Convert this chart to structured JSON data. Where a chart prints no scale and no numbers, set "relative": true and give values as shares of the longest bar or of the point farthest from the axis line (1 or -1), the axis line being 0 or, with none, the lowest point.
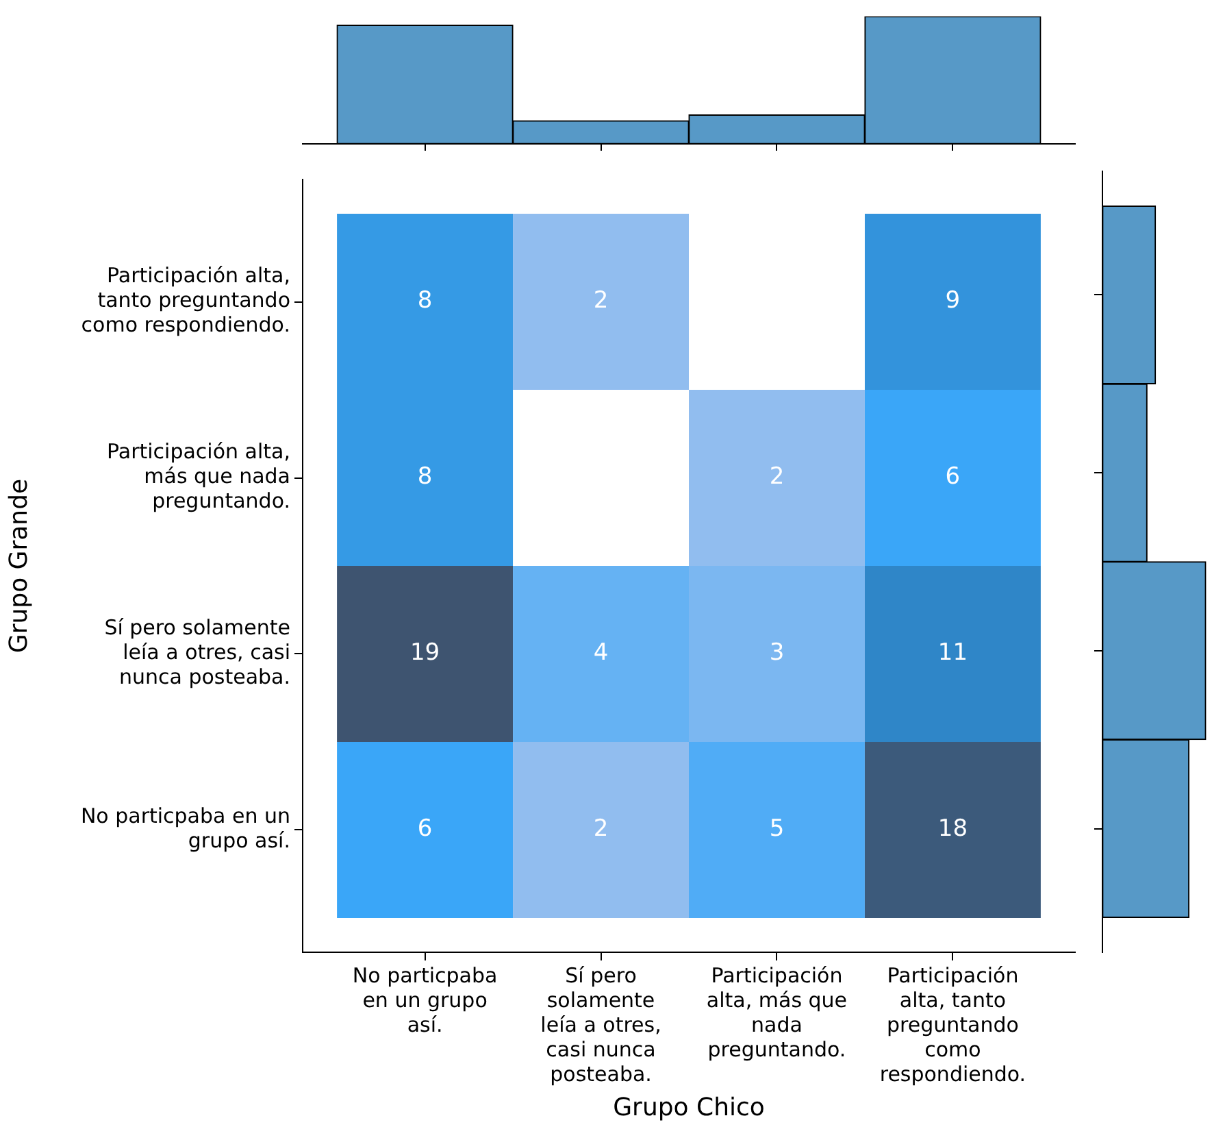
{
  "chart_data": [
    {
      "type": "heatmap",
      "xlabel": "Grupo Chico",
      "ylabel": "Grupo Grande",
      "categories": [
        "No particpaba en un grupo así.",
        "Sí pero solamente leía a otres, casi nunca posteaba.",
        "Participación alta, más que nada preguntando.",
        "Participación alta, tanto preguntando como respondiendo."
      ],
      "y_categories": [
        "Participación alta, tanto preguntando como respondiendo.",
        "Participación alta, más que nada preguntando.",
        "Sí pero solamente leía a otres, casi nunca posteaba.",
        "No particpaba en un grupo así."
      ],
      "cells": [
        [
          8,
          2,
          null,
          9
        ],
        [
          8,
          null,
          2,
          6
        ],
        [
          19,
          4,
          3,
          11
        ],
        [
          6,
          2,
          5,
          18
        ]
      ],
      "data_labels": true
    },
    {
      "type": "bar",
      "categories": [
        null,
        null,
        null,
        null
      ],
      "values": [
        0.932,
        0.182,
        0.227,
        1
      ],
      "relative": true,
      "color": "#5799c7"
    },
    {
      "type": "bar",
      "orientation": "horizontal",
      "categories": [
        null,
        null,
        null,
        null
      ],
      "values": [
        0.514,
        0.432,
        1,
        0.838
      ],
      "relative": true,
      "color": "#5799c7"
    }
  ]
}
